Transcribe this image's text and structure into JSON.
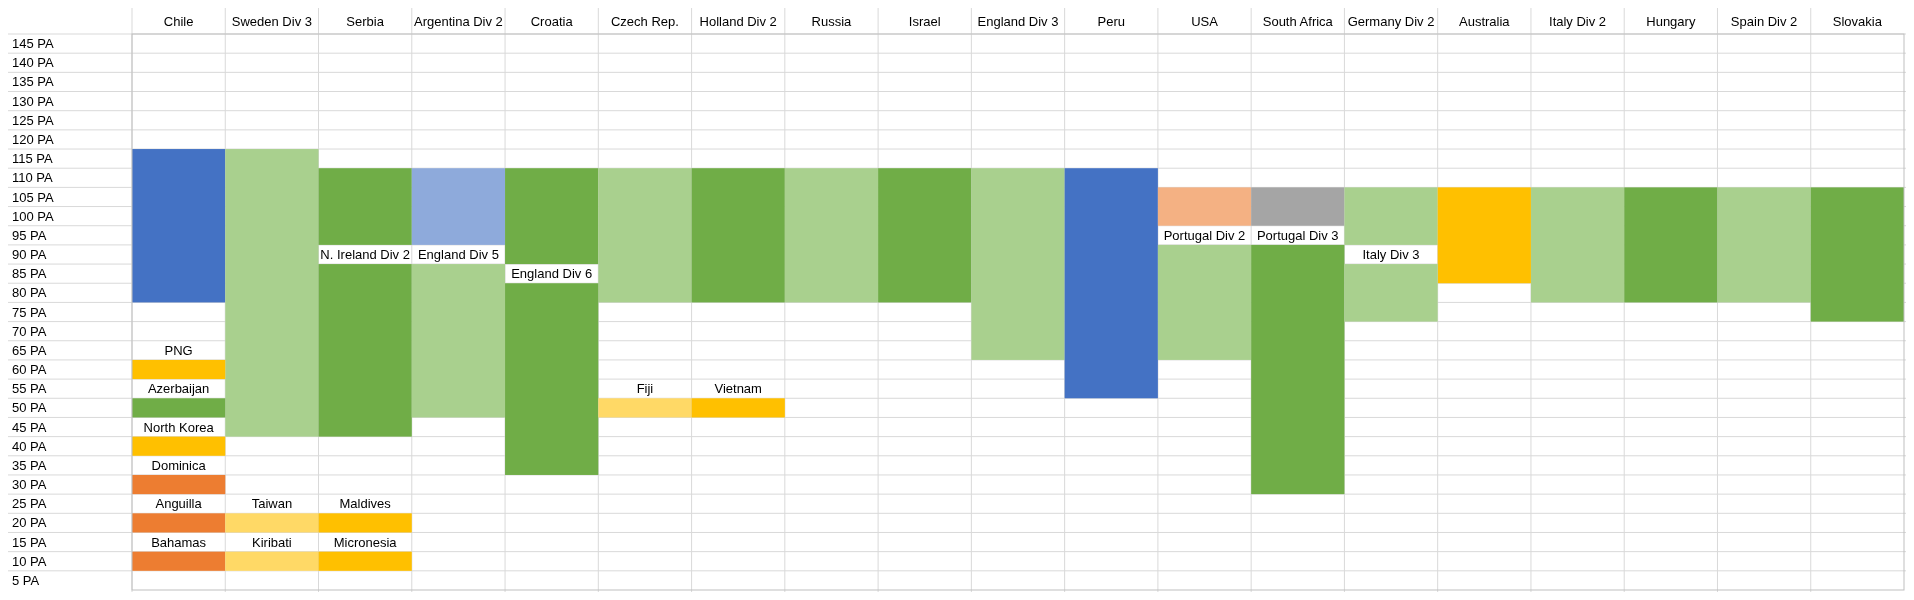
{
  "chart_data": {
    "type": "bar",
    "grid": true,
    "categories": [
      "Chile",
      "Sweden Div 3",
      "Serbia",
      "Argentina Div 2",
      "Croatia",
      "Czech Rep.",
      "Holland Div 2",
      "Russia",
      "Israel",
      "England Div 3",
      "Peru",
      "USA",
      "South Africa",
      "Germany Div 2",
      "Australia",
      "Italy Div 2",
      "Hungary",
      "Spain Div 2",
      "Slovakia"
    ],
    "ylim": [
      0,
      145
    ],
    "yticks": [
      {
        "value": 5,
        "label": "5 PA"
      },
      {
        "value": 10,
        "label": "10 PA"
      },
      {
        "value": 15,
        "label": "15 PA"
      },
      {
        "value": 20,
        "label": "20 PA"
      },
      {
        "value": 25,
        "label": "25 PA"
      },
      {
        "value": 30,
        "label": "30 PA"
      },
      {
        "value": 35,
        "label": "35 PA"
      },
      {
        "value": 40,
        "label": "40 PA"
      },
      {
        "value": 45,
        "label": "45 PA"
      },
      {
        "value": 50,
        "label": "50 PA"
      },
      {
        "value": 55,
        "label": "55 PA"
      },
      {
        "value": 60,
        "label": "60 PA"
      },
      {
        "value": 65,
        "label": "65 PA"
      },
      {
        "value": 70,
        "label": "70 PA"
      },
      {
        "value": 75,
        "label": "75 PA"
      },
      {
        "value": 80,
        "label": "80 PA"
      },
      {
        "value": 85,
        "label": "85 PA"
      },
      {
        "value": 90,
        "label": "90 PA"
      },
      {
        "value": 95,
        "label": "95 PA"
      },
      {
        "value": 100,
        "label": "100 PA"
      },
      {
        "value": 105,
        "label": "105 PA"
      },
      {
        "value": 110,
        "label": "110 PA"
      },
      {
        "value": 115,
        "label": "115 PA"
      },
      {
        "value": 120,
        "label": "120 PA"
      },
      {
        "value": 125,
        "label": "125 PA"
      },
      {
        "value": 130,
        "label": "130 PA"
      },
      {
        "value": 135,
        "label": "135 PA"
      },
      {
        "value": 140,
        "label": "140 PA"
      },
      {
        "value": 145,
        "label": "145 PA"
      }
    ],
    "series": [
      {
        "colors": [
          "#4472c4",
          "#a9d08e",
          "#70ad47",
          "#8eaadb",
          "#70ad47",
          "#a9d08e",
          "#70ad47",
          "#a9d08e",
          "#70ad47",
          "#a9d08e",
          "#4472c4",
          "#f4b183",
          "#a5a5a5",
          "#a9d08e",
          "#ffc000",
          "#a9d08e",
          "#70ad47",
          "#a9d08e",
          "#70ad47"
        ],
        "base": [
          75,
          40,
          90,
          90,
          85,
          75,
          75,
          75,
          75,
          60,
          50,
          95,
          95,
          90,
          80,
          75,
          75,
          75,
          70
        ],
        "values": [
          40,
          75,
          20,
          20,
          25,
          35,
          35,
          35,
          35,
          50,
          60,
          10,
          10,
          15,
          25,
          30,
          30,
          30,
          35
        ]
      },
      {
        "name": "PNG",
        "color": "#ffc000",
        "base": [
          55,
          null,
          null,
          null,
          null,
          null,
          null,
          null,
          null,
          null,
          null,
          null,
          null,
          null,
          null,
          null,
          null,
          null,
          null
        ],
        "values": [
          5,
          null,
          null,
          null,
          null,
          null,
          null,
          null,
          null,
          null,
          null,
          null,
          null,
          null,
          null,
          null,
          null,
          null,
          null
        ]
      },
      {
        "name": "Azerbaijan",
        "color": "#70ad47",
        "base": [
          45,
          null,
          null,
          null,
          null,
          null,
          null,
          null,
          null,
          null,
          null,
          null,
          null,
          null,
          null,
          null,
          null,
          null,
          null
        ],
        "values": [
          5,
          null,
          null,
          null,
          null,
          null,
          null,
          null,
          null,
          null,
          null,
          null,
          null,
          null,
          null,
          null,
          null,
          null,
          null
        ]
      },
      {
        "name": "North Korea",
        "color": "#ffc000",
        "base": [
          35,
          null,
          null,
          null,
          null,
          null,
          null,
          null,
          null,
          null,
          null,
          null,
          null,
          null,
          null,
          null,
          null,
          null,
          null
        ],
        "values": [
          5,
          null,
          null,
          null,
          null,
          null,
          null,
          null,
          null,
          null,
          null,
          null,
          null,
          null,
          null,
          null,
          null,
          null,
          null
        ]
      },
      {
        "name": "Dominica",
        "color": "#ed7d31",
        "base": [
          25,
          null,
          null,
          null,
          null,
          null,
          null,
          null,
          null,
          null,
          null,
          null,
          null,
          null,
          null,
          null,
          null,
          null,
          null
        ],
        "values": [
          5,
          null,
          null,
          null,
          null,
          null,
          null,
          null,
          null,
          null,
          null,
          null,
          null,
          null,
          null,
          null,
          null,
          null,
          null
        ]
      },
      {
        "name": "Anguilla",
        "color": "#ed7d31",
        "base": [
          15,
          null,
          null,
          null,
          null,
          null,
          null,
          null,
          null,
          null,
          null,
          null,
          null,
          null,
          null,
          null,
          null,
          null,
          null
        ],
        "values": [
          5,
          null,
          null,
          null,
          null,
          null,
          null,
          null,
          null,
          null,
          null,
          null,
          null,
          null,
          null,
          null,
          null,
          null,
          null
        ]
      },
      {
        "name": "Bahamas",
        "color": "#ed7d31",
        "base": [
          5,
          null,
          null,
          null,
          null,
          null,
          null,
          null,
          null,
          null,
          null,
          null,
          null,
          null,
          null,
          null,
          null,
          null,
          null
        ],
        "values": [
          5,
          null,
          null,
          null,
          null,
          null,
          null,
          null,
          null,
          null,
          null,
          null,
          null,
          null,
          null,
          null,
          null,
          null,
          null
        ]
      },
      {
        "name": "Taiwan",
        "color": "#ffd966",
        "base": [
          null,
          15,
          null,
          null,
          null,
          null,
          null,
          null,
          null,
          null,
          null,
          null,
          null,
          null,
          null,
          null,
          null,
          null,
          null
        ],
        "values": [
          null,
          5,
          null,
          null,
          null,
          null,
          null,
          null,
          null,
          null,
          null,
          null,
          null,
          null,
          null,
          null,
          null,
          null,
          null
        ]
      },
      {
        "name": "Kiribati",
        "color": "#ffd966",
        "base": [
          null,
          5,
          null,
          null,
          null,
          null,
          null,
          null,
          null,
          null,
          null,
          null,
          null,
          null,
          null,
          null,
          null,
          null,
          null
        ],
        "values": [
          null,
          5,
          null,
          null,
          null,
          null,
          null,
          null,
          null,
          null,
          null,
          null,
          null,
          null,
          null,
          null,
          null,
          null,
          null
        ]
      },
      {
        "name": "N. Ireland Div 2",
        "color": "#70ad47",
        "base": [
          null,
          null,
          40,
          null,
          null,
          null,
          null,
          null,
          null,
          null,
          null,
          null,
          null,
          null,
          null,
          null,
          null,
          null,
          null
        ],
        "values": [
          null,
          null,
          45,
          null,
          null,
          null,
          null,
          null,
          null,
          null,
          null,
          null,
          null,
          null,
          null,
          null,
          null,
          null,
          null
        ]
      },
      {
        "name": "Maldives",
        "color": "#ffc000",
        "base": [
          null,
          null,
          15,
          null,
          null,
          null,
          null,
          null,
          null,
          null,
          null,
          null,
          null,
          null,
          null,
          null,
          null,
          null,
          null
        ],
        "values": [
          null,
          null,
          5,
          null,
          null,
          null,
          null,
          null,
          null,
          null,
          null,
          null,
          null,
          null,
          null,
          null,
          null,
          null,
          null
        ]
      },
      {
        "name": "Micronesia",
        "color": "#ffc000",
        "base": [
          null,
          null,
          5,
          null,
          null,
          null,
          null,
          null,
          null,
          null,
          null,
          null,
          null,
          null,
          null,
          null,
          null,
          null,
          null
        ],
        "values": [
          null,
          null,
          5,
          null,
          null,
          null,
          null,
          null,
          null,
          null,
          null,
          null,
          null,
          null,
          null,
          null,
          null,
          null,
          null
        ]
      },
      {
        "name": "England Div 5",
        "color": "#a9d08e",
        "base": [
          null,
          null,
          null,
          45,
          null,
          null,
          null,
          null,
          null,
          null,
          null,
          null,
          null,
          null,
          null,
          null,
          null,
          null,
          null
        ],
        "values": [
          null,
          null,
          null,
          40,
          null,
          null,
          null,
          null,
          null,
          null,
          null,
          null,
          null,
          null,
          null,
          null,
          null,
          null,
          null
        ]
      },
      {
        "name": "England Div 6",
        "color": "#70ad47",
        "base": [
          null,
          null,
          null,
          null,
          30,
          null,
          null,
          null,
          null,
          null,
          null,
          null,
          null,
          null,
          null,
          null,
          null,
          null,
          null
        ],
        "values": [
          null,
          null,
          null,
          null,
          50,
          null,
          null,
          null,
          null,
          null,
          null,
          null,
          null,
          null,
          null,
          null,
          null,
          null,
          null
        ]
      },
      {
        "name": "Fiji",
        "color": "#ffd966",
        "base": [
          null,
          null,
          null,
          null,
          null,
          45,
          null,
          null,
          null,
          null,
          null,
          null,
          null,
          null,
          null,
          null,
          null,
          null,
          null
        ],
        "values": [
          null,
          null,
          null,
          null,
          null,
          5,
          null,
          null,
          null,
          null,
          null,
          null,
          null,
          null,
          null,
          null,
          null,
          null,
          null
        ]
      },
      {
        "name": "Vietnam",
        "color": "#ffc000",
        "base": [
          null,
          null,
          null,
          null,
          null,
          null,
          45,
          null,
          null,
          null,
          null,
          null,
          null,
          null,
          null,
          null,
          null,
          null,
          null
        ],
        "values": [
          null,
          null,
          null,
          null,
          null,
          null,
          5,
          null,
          null,
          null,
          null,
          null,
          null,
          null,
          null,
          null,
          null,
          null,
          null
        ]
      },
      {
        "name": "Portugal Div 2",
        "color": "#a9d08e",
        "base": [
          null,
          null,
          null,
          null,
          null,
          null,
          null,
          null,
          null,
          null,
          null,
          60,
          null,
          null,
          null,
          null,
          null,
          null,
          null
        ],
        "values": [
          null,
          null,
          null,
          null,
          null,
          null,
          null,
          null,
          null,
          null,
          null,
          30,
          null,
          null,
          null,
          null,
          null,
          null,
          null
        ]
      },
      {
        "name": "Portugal Div 3",
        "color": "#70ad47",
        "base": [
          null,
          null,
          null,
          null,
          null,
          null,
          null,
          null,
          null,
          null,
          null,
          null,
          25,
          null,
          null,
          null,
          null,
          null,
          null
        ],
        "values": [
          null,
          null,
          null,
          null,
          null,
          null,
          null,
          null,
          null,
          null,
          null,
          null,
          65,
          null,
          null,
          null,
          null,
          null,
          null
        ]
      },
      {
        "name": "Italy Div 3",
        "color": "#a9d08e",
        "base": [
          null,
          null,
          null,
          null,
          null,
          null,
          null,
          null,
          null,
          null,
          null,
          null,
          null,
          70,
          null,
          null,
          null,
          null,
          null
        ],
        "values": [
          null,
          null,
          null,
          null,
          null,
          null,
          null,
          null,
          null,
          null,
          null,
          null,
          null,
          15,
          null,
          null,
          null,
          null,
          null
        ]
      }
    ]
  }
}
